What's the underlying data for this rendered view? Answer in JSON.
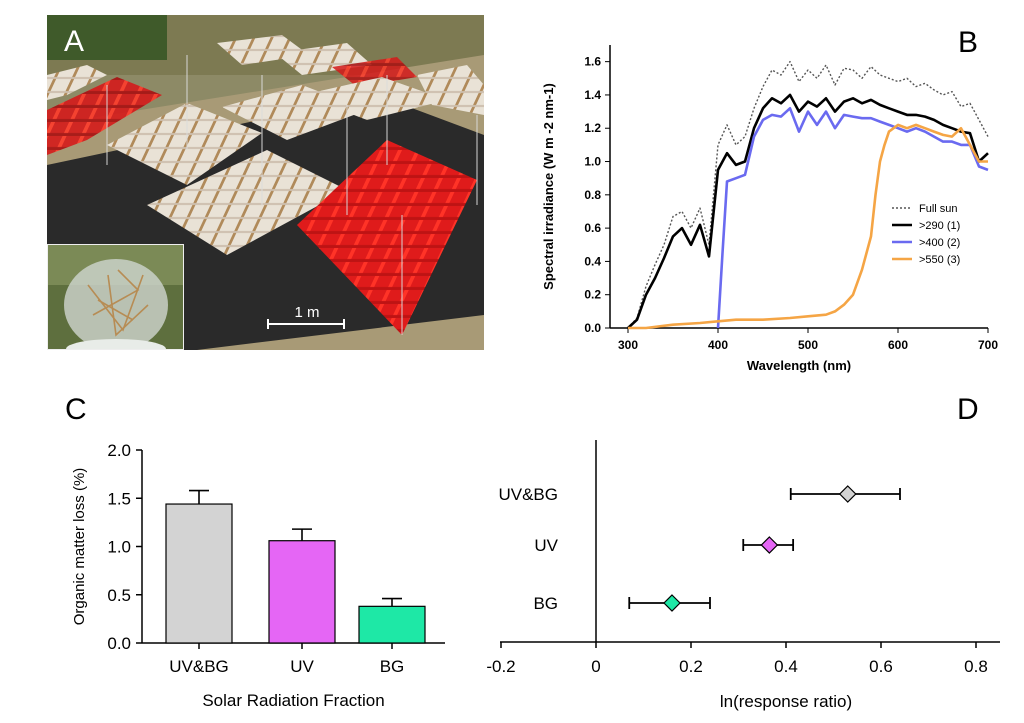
{
  "panels": {
    "a": "A",
    "b": "B",
    "c": "C",
    "d": "D"
  },
  "photo": {
    "scale_label": "1 m"
  },
  "colors": {
    "full_sun": "#555555",
    "gt290": "#000000",
    "gt400": "#6a6af0",
    "gt550": "#f5a545",
    "uvbg": "#d3d3d3",
    "uv": "#e566f5",
    "bg": "#1ee8a6"
  },
  "chart_data": [
    {
      "type": "line",
      "xlabel": "Wavelength (nm)",
      "ylabel": "Spectral irradiance (W m -2 nm-1)",
      "xlim": [
        280,
        700
      ],
      "ylim": [
        0,
        1.7
      ],
      "xticks": [
        "300",
        "400",
        "500",
        "600",
        "700"
      ],
      "yticks": [
        "0.0",
        "0.2",
        "0.4",
        "0.6",
        "0.8",
        "1.0",
        "1.2",
        "1.4",
        "1.6"
      ],
      "legend_position": "right",
      "series": [
        {
          "name": "Full sun",
          "style": "dotted",
          "x": [
            300,
            310,
            320,
            330,
            340,
            350,
            360,
            370,
            380,
            390,
            400,
            410,
            420,
            430,
            440,
            450,
            460,
            470,
            480,
            490,
            500,
            510,
            520,
            530,
            540,
            550,
            560,
            570,
            580,
            590,
            600,
            610,
            620,
            630,
            640,
            650,
            660,
            670,
            680,
            690,
            700
          ],
          "y": [
            0.0,
            0.06,
            0.25,
            0.38,
            0.5,
            0.67,
            0.7,
            0.6,
            0.72,
            0.5,
            1.1,
            1.22,
            1.1,
            1.15,
            1.32,
            1.45,
            1.55,
            1.52,
            1.6,
            1.48,
            1.55,
            1.5,
            1.58,
            1.46,
            1.56,
            1.55,
            1.5,
            1.57,
            1.52,
            1.5,
            1.48,
            1.5,
            1.45,
            1.47,
            1.43,
            1.4,
            1.42,
            1.33,
            1.35,
            1.25,
            1.15
          ]
        },
        {
          "name": ">290 (1)",
          "style": "solid",
          "x": [
            300,
            310,
            320,
            330,
            340,
            350,
            360,
            370,
            380,
            390,
            400,
            410,
            420,
            430,
            440,
            450,
            460,
            470,
            480,
            490,
            500,
            510,
            520,
            530,
            540,
            550,
            560,
            570,
            580,
            590,
            600,
            610,
            620,
            630,
            640,
            650,
            660,
            670,
            680,
            690,
            700
          ],
          "y": [
            0.0,
            0.05,
            0.2,
            0.3,
            0.42,
            0.55,
            0.6,
            0.5,
            0.62,
            0.43,
            0.95,
            1.05,
            0.98,
            1.0,
            1.2,
            1.32,
            1.38,
            1.35,
            1.4,
            1.3,
            1.36,
            1.33,
            1.38,
            1.3,
            1.36,
            1.38,
            1.35,
            1.37,
            1.34,
            1.32,
            1.3,
            1.28,
            1.28,
            1.27,
            1.25,
            1.22,
            1.2,
            1.18,
            1.17,
            1.0,
            1.05
          ]
        },
        {
          "name": ">400 (2)",
          "style": "solid",
          "x": [
            400,
            405,
            410,
            420,
            430,
            440,
            450,
            460,
            470,
            480,
            490,
            500,
            510,
            520,
            530,
            540,
            550,
            560,
            570,
            580,
            590,
            600,
            610,
            620,
            630,
            640,
            650,
            660,
            670,
            680,
            690,
            700
          ],
          "y": [
            0.0,
            0.45,
            0.88,
            0.9,
            0.92,
            1.15,
            1.25,
            1.28,
            1.27,
            1.32,
            1.18,
            1.3,
            1.22,
            1.3,
            1.2,
            1.28,
            1.27,
            1.26,
            1.26,
            1.24,
            1.22,
            1.2,
            1.18,
            1.2,
            1.18,
            1.15,
            1.12,
            1.12,
            1.1,
            1.1,
            0.97,
            0.95
          ]
        },
        {
          "name": ">550 (3)",
          "style": "solid",
          "x": [
            300,
            320,
            350,
            380,
            400,
            420,
            450,
            480,
            500,
            520,
            530,
            540,
            550,
            560,
            570,
            575,
            580,
            585,
            590,
            600,
            610,
            620,
            630,
            640,
            650,
            660,
            670,
            680,
            690,
            700
          ],
          "y": [
            0.0,
            0.0,
            0.02,
            0.03,
            0.04,
            0.05,
            0.05,
            0.06,
            0.07,
            0.08,
            0.1,
            0.14,
            0.2,
            0.35,
            0.55,
            0.8,
            1.0,
            1.1,
            1.18,
            1.22,
            1.2,
            1.22,
            1.2,
            1.18,
            1.16,
            1.15,
            1.2,
            1.1,
            1.0,
            1.0
          ]
        }
      ]
    },
    {
      "type": "bar",
      "xlabel": "Solar Radiation Fraction",
      "ylabel": "Organic matter loss (%)",
      "ylim": [
        0,
        2.0
      ],
      "yticks": [
        "0.0",
        "0.5",
        "1.0",
        "1.5",
        "2.0"
      ],
      "categories": [
        "UV&BG",
        "UV",
        "BG"
      ],
      "values": [
        1.44,
        1.06,
        0.38
      ],
      "errors": [
        0.14,
        0.12,
        0.08
      ]
    },
    {
      "type": "scatter",
      "xlabel": "ln(response ratio)",
      "xlim": [
        -0.25,
        0.85
      ],
      "xticks": [
        "-0.2",
        "0",
        "0.2",
        "0.4",
        "0.6",
        "0.8"
      ],
      "categories": [
        "UV&BG",
        "UV",
        "BG"
      ],
      "values": [
        0.53,
        0.365,
        0.16
      ],
      "ci_low": [
        0.41,
        0.31,
        0.07
      ],
      "ci_high": [
        0.64,
        0.415,
        0.24
      ]
    }
  ]
}
